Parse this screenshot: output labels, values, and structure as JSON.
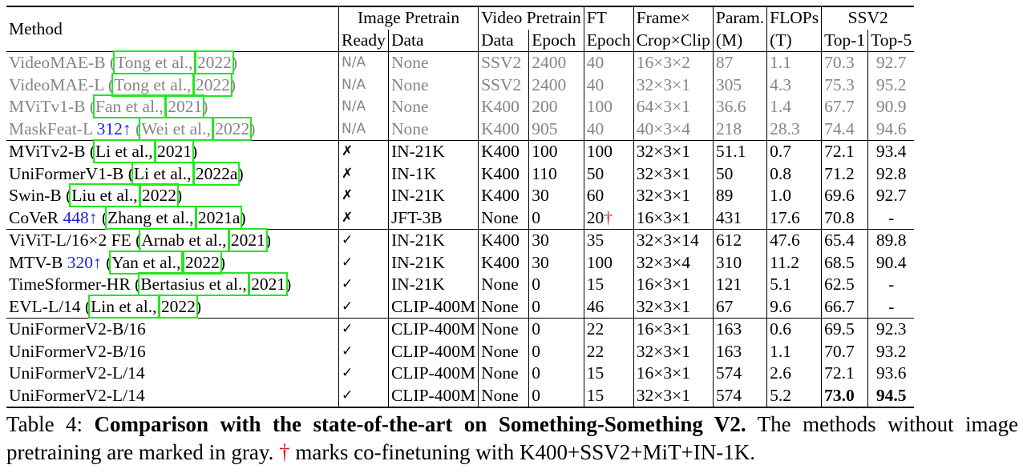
{
  "header": {
    "method": "Method",
    "image_pretrain": "Image Pretrain",
    "video_pretrain": "Video Pretrain",
    "ft": "FT",
    "frame": "Frame×",
    "param": "Param.",
    "flops": "FLOPs",
    "ssv2": "SSV2",
    "ready": "Ready",
    "data": "Data",
    "vdata": "Data",
    "epoch": "Epoch",
    "ftepoch": "Epoch",
    "crop": "Crop×Clip",
    "param_unit": "(M)",
    "flops_unit": "(T)",
    "top1": "Top-1",
    "top5": "Top-5"
  },
  "rows": [
    {
      "name": "VideoMAE-B",
      "extra": "",
      "cite_a": "Tong et al.,",
      "cite_b": "2022",
      "ready": "N/A",
      "data": "None",
      "vdata": "SSV2",
      "epoch": "2400",
      "ft": "40",
      "dag": "",
      "frame": "16×3×2",
      "param": "87",
      "flops": "1.1",
      "top1": "70.3",
      "top5": "92.7",
      "gray": true
    },
    {
      "name": "VideoMAE-L",
      "extra": "",
      "cite_a": "Tong et al.,",
      "cite_b": "2022",
      "ready": "N/A",
      "data": "None",
      "vdata": "SSV2",
      "epoch": "2400",
      "ft": "40",
      "dag": "",
      "frame": "32×3×1",
      "param": "305",
      "flops": "4.3",
      "top1": "75.3",
      "top5": "95.2",
      "gray": true
    },
    {
      "name": "MViTv1-B",
      "extra": "",
      "cite_a": "Fan et al.,",
      "cite_b": "2021",
      "ready": "N/A",
      "data": "None",
      "vdata": "K400",
      "epoch": "200",
      "ft": "100",
      "dag": "",
      "frame": "64×3×1",
      "param": "36.6",
      "flops": "1.4",
      "top1": "67.7",
      "top5": "90.9",
      "gray": true
    },
    {
      "name": "MaskFeat-L",
      "extra": "312↑",
      "cite_a": "Wei et al.,",
      "cite_b": "2022",
      "ready": "N/A",
      "data": "None",
      "vdata": "K400",
      "epoch": "905",
      "ft": "40",
      "dag": "",
      "frame": "40×3×4",
      "param": "218",
      "flops": "28.3",
      "top1": "74.4",
      "top5": "94.6",
      "gray": true
    },
    {
      "name": "MViTv2-B",
      "extra": "",
      "cite_a": "Li et al.,",
      "cite_b": "2021",
      "ready": "✗",
      "data": "IN-21K",
      "vdata": "K400",
      "epoch": "100",
      "ft": "100",
      "dag": "",
      "frame": "32×3×1",
      "param": "51.1",
      "flops": "0.7",
      "top1": "72.1",
      "top5": "93.4"
    },
    {
      "name": "UniFormerV1-B",
      "extra": "",
      "cite_a": "Li et al.,",
      "cite_b": "2022a",
      "ready": "✗",
      "data": "IN-1K",
      "vdata": "K400",
      "epoch": "110",
      "ft": "50",
      "dag": "",
      "frame": "32×3×1",
      "param": "50",
      "flops": "0.8",
      "top1": "71.2",
      "top5": "92.8"
    },
    {
      "name": "Swin-B",
      "extra": "",
      "cite_a": "Liu et al.,",
      "cite_b": "2022",
      "ready": "✗",
      "data": "IN-21K",
      "vdata": "K400",
      "epoch": "30",
      "ft": "60",
      "dag": "",
      "frame": "32×3×1",
      "param": "89",
      "flops": "1.0",
      "top1": "69.6",
      "top5": "92.7"
    },
    {
      "name": "CoVeR",
      "extra": "448↑",
      "cite_a": "Zhang et al.,",
      "cite_b": "2021a",
      "ready": "✗",
      "data": "JFT-3B",
      "vdata": "None",
      "epoch": "0",
      "ft": "20",
      "dag": "†",
      "frame": "16×3×1",
      "param": "431",
      "flops": "17.6",
      "top1": "70.8",
      "top5": "-"
    },
    {
      "name": "ViViT-L/16×2 FE",
      "extra": "",
      "cite_a": "Arnab et al.,",
      "cite_b": "2021",
      "ready": "✓",
      "data": "IN-21K",
      "vdata": "K400",
      "epoch": "30",
      "ft": "35",
      "dag": "",
      "frame": "32×3×14",
      "param": "612",
      "flops": "47.6",
      "top1": "65.4",
      "top5": "89.8"
    },
    {
      "name": "MTV-B",
      "extra": "320↑",
      "cite_a": "Yan et al.,",
      "cite_b": "2022",
      "ready": "✓",
      "data": "IN-21K",
      "vdata": "K400",
      "epoch": "30",
      "ft": "100",
      "dag": "",
      "frame": "32×3×4",
      "param": "310",
      "flops": "11.2",
      "top1": "68.5",
      "top5": "90.4"
    },
    {
      "name": "TimeSformer-HR",
      "extra": "",
      "cite_a": "Bertasius et al.,",
      "cite_b": "2021",
      "ready": "✓",
      "data": "IN-21K",
      "vdata": "None",
      "epoch": "0",
      "ft": "15",
      "dag": "",
      "frame": "16×3×1",
      "param": "121",
      "flops": "5.1",
      "top1": "62.5",
      "top5": "-"
    },
    {
      "name": "EVL-L/14",
      "extra": "",
      "cite_a": "Lin et al.,",
      "cite_b": "2022",
      "ready": "✓",
      "data": "CLIP-400M",
      "vdata": "None",
      "epoch": "0",
      "ft": "46",
      "dag": "",
      "frame": "32×3×1",
      "param": "67",
      "flops": "9.6",
      "top1": "66.7",
      "top5": "-"
    },
    {
      "name": "UniFormerV2-B/16",
      "extra": "",
      "cite_a": "",
      "cite_b": "",
      "ready": "✓",
      "data": "CLIP-400M",
      "vdata": "None",
      "epoch": "0",
      "ft": "22",
      "dag": "",
      "frame": "16×3×1",
      "param": "163",
      "flops": "0.6",
      "top1": "69.5",
      "top5": "92.3"
    },
    {
      "name": "UniFormerV2-B/16",
      "extra": "",
      "cite_a": "",
      "cite_b": "",
      "ready": "✓",
      "data": "CLIP-400M",
      "vdata": "None",
      "epoch": "0",
      "ft": "22",
      "dag": "",
      "frame": "32×3×1",
      "param": "163",
      "flops": "1.1",
      "top1": "70.7",
      "top5": "93.2"
    },
    {
      "name": "UniFormerV2-L/14",
      "extra": "",
      "cite_a": "",
      "cite_b": "",
      "ready": "✓",
      "data": "CLIP-400M",
      "vdata": "None",
      "epoch": "0",
      "ft": "15",
      "dag": "",
      "frame": "16×3×1",
      "param": "574",
      "flops": "2.6",
      "top1": "72.1",
      "top5": "93.6"
    },
    {
      "name": "UniFormerV2-L/14",
      "extra": "",
      "cite_a": "",
      "cite_b": "",
      "ready": "✓",
      "data": "CLIP-400M",
      "vdata": "None",
      "epoch": "0",
      "ft": "15",
      "dag": "",
      "frame": "32×3×1",
      "param": "574",
      "flops": "5.2",
      "top1": "73.0",
      "top5": "94.5",
      "bold": true
    }
  ],
  "caption": {
    "label": "Table 4:",
    "bold": "Comparison with the state-of-the-art on Something-Something V2.",
    "text1": "The methods without image pretraining are marked in gray.",
    "dagger": "†",
    "text2": "marks co-finetuning with K400+SSV2+MiT+IN-1K."
  },
  "colors": {
    "gray_text": "#858585",
    "citation_box": "#22e81f",
    "link_blue": "#1f22ee",
    "dagger_red": "#e31a1c"
  }
}
